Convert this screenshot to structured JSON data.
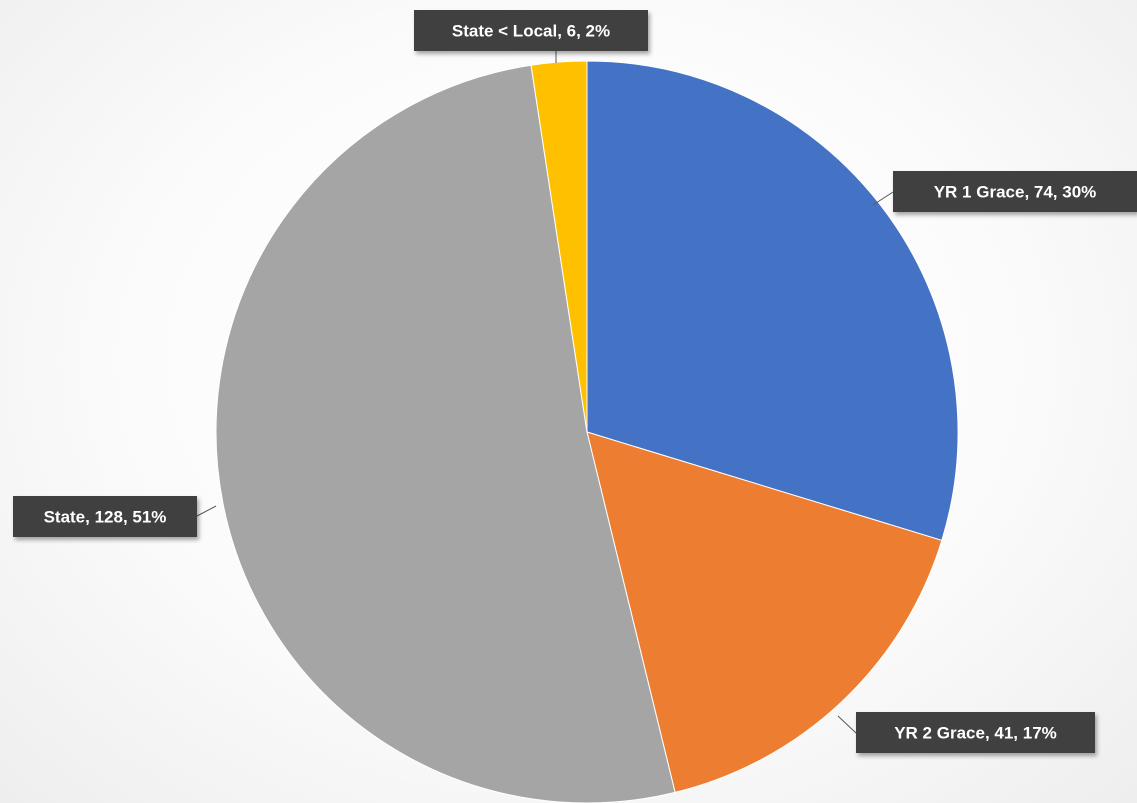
{
  "chart_data": {
    "type": "pie",
    "title": "",
    "start_angle_deg": 0,
    "direction": "clockwise",
    "slices": [
      {
        "label": "YR 1 Grace",
        "value": 74,
        "percent": "30%",
        "color": "#4472C4",
        "data_label": "YR 1 Grace, 74, 30%"
      },
      {
        "label": "YR 2 Grace",
        "value": 41,
        "percent": "17%",
        "color": "#ED7D31",
        "data_label": "YR 2 Grace, 41, 17%"
      },
      {
        "label": "State",
        "value": 128,
        "percent": "51%",
        "color": "#A5A5A5",
        "data_label": "State, 128, 51%"
      },
      {
        "label": "State < Local",
        "value": 6,
        "percent": "2%",
        "color": "#FFC000",
        "data_label": "State < Local, 6, 2%"
      }
    ],
    "data_label_style": {
      "background": "#404040",
      "text_color": "#FFFFFF"
    },
    "legend": "none"
  }
}
